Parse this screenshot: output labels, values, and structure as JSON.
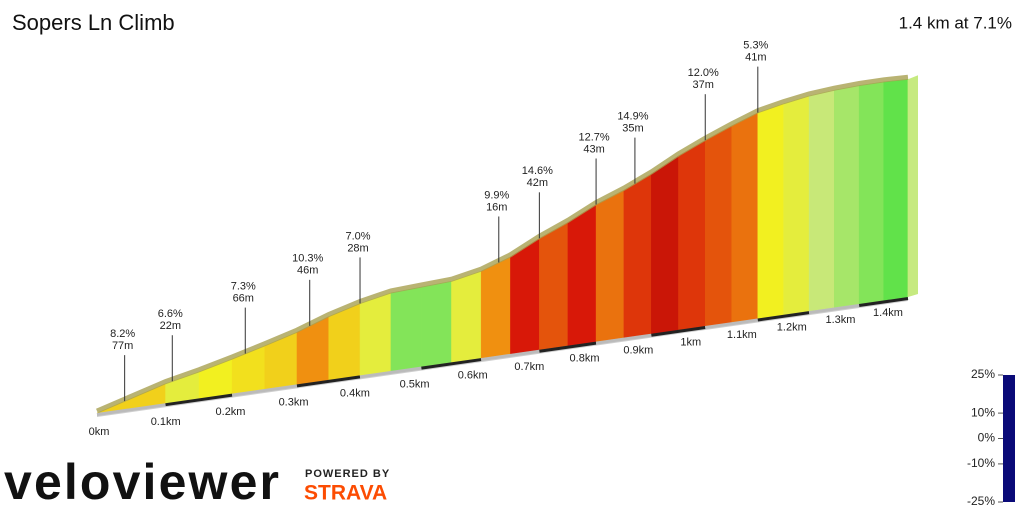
{
  "chart_data": {
    "type": "elevation-profile",
    "title": "Sopers Ln Climb",
    "summary": "1.4 km at 7.1%",
    "bins": [
      0,
      0.05,
      0.1,
      0.15,
      0.2,
      0.25,
      0.3,
      0.35,
      0.4,
      0.45,
      0.5,
      0.55,
      0.6,
      0.65,
      0.7,
      0.75,
      0.8,
      0.85,
      0.9,
      0.95,
      1.0,
      1.05,
      1.1,
      1.15,
      1.2,
      1.25,
      1.3,
      1.35,
      1.4
    ],
    "values": [
      8,
      8,
      6,
      7,
      7.5,
      8,
      10,
      8,
      6,
      2,
      2,
      6,
      10,
      14,
      12,
      14,
      11,
      13,
      15,
      13,
      12,
      11,
      7,
      6,
      4,
      3,
      2,
      1,
      4
    ],
    "xlim": [
      0,
      1.4
    ],
    "xticks": [
      {
        "value": 0,
        "label": "0km"
      },
      {
        "value": 0.1,
        "label": "0.1km"
      },
      {
        "value": 0.2,
        "label": "0.2km"
      },
      {
        "value": 0.3,
        "label": "0.3km"
      },
      {
        "value": 0.4,
        "label": "0.4km"
      },
      {
        "value": 0.5,
        "label": "0.5km"
      },
      {
        "value": 0.6,
        "label": "0.6km"
      },
      {
        "value": 0.7,
        "label": "0.7km"
      },
      {
        "value": 0.8,
        "label": "0.8km"
      },
      {
        "value": 0.9,
        "label": "0.9km"
      },
      {
        "value": 1.0,
        "label": "1km"
      },
      {
        "value": 1.1,
        "label": "1.1km"
      },
      {
        "value": 1.2,
        "label": "1.2km"
      },
      {
        "value": 1.3,
        "label": "1.3km"
      },
      {
        "value": 1.4,
        "label": "1.4km"
      }
    ],
    "annotations": [
      {
        "x": 0.04,
        "grade": {
          "value": 8.2,
          "label": "8.2%"
        },
        "length": {
          "value": 77,
          "label": "77m"
        }
      },
      {
        "x": 0.11,
        "grade": {
          "value": 6.6,
          "label": "6.6%"
        },
        "length": {
          "value": 22,
          "label": "22m"
        }
      },
      {
        "x": 0.22,
        "grade": {
          "value": 7.3,
          "label": "7.3%"
        },
        "length": {
          "value": 66,
          "label": "66m"
        }
      },
      {
        "x": 0.32,
        "grade": {
          "value": 10.3,
          "label": "10.3%"
        },
        "length": {
          "value": 46,
          "label": "46m"
        }
      },
      {
        "x": 0.4,
        "grade": {
          "value": 7.0,
          "label": "7.0%"
        },
        "length": {
          "value": 28,
          "label": "28m"
        }
      },
      {
        "x": 0.63,
        "grade": {
          "value": 9.9,
          "label": "9.9%"
        },
        "length": {
          "value": 16,
          "label": "16m"
        }
      },
      {
        "x": 0.7,
        "grade": {
          "value": 14.6,
          "label": "14.6%"
        },
        "length": {
          "value": 42,
          "label": "42m"
        }
      },
      {
        "x": 0.8,
        "grade": {
          "value": 12.7,
          "label": "12.7%"
        },
        "length": {
          "value": 43,
          "label": "43m"
        }
      },
      {
        "x": 0.87,
        "grade": {
          "value": 14.9,
          "label": "14.9%"
        },
        "length": {
          "value": 35,
          "label": "35m"
        }
      },
      {
        "x": 1.0,
        "grade": {
          "value": 12.0,
          "label": "12.0%"
        },
        "length": {
          "value": 37,
          "label": "37m"
        }
      },
      {
        "x": 1.1,
        "grade": {
          "value": 5.3,
          "label": "5.3%"
        },
        "length": {
          "value": 41,
          "label": "41m"
        }
      }
    ],
    "color_scale": {
      "ylim": [
        -25,
        25
      ],
      "yticks": [
        {
          "value": 25,
          "label": "25%"
        },
        {
          "value": 10,
          "label": "10%"
        },
        {
          "value": 0,
          "label": "0%"
        },
        {
          "value": -10,
          "label": "-10%"
        },
        {
          "value": -25,
          "label": "-25%"
        }
      ],
      "stops": [
        {
          "grade": -25,
          "color": "#0a0a78"
        },
        {
          "grade": -10,
          "color": "#2a5cff"
        },
        {
          "grade": 0,
          "color": "#3ee03a"
        },
        {
          "grade": 4,
          "color": "#c8e878"
        },
        {
          "grade": 7,
          "color": "#f2f020"
        },
        {
          "grade": 10,
          "color": "#f09010"
        },
        {
          "grade": 14,
          "color": "#d81808"
        },
        {
          "grade": 25,
          "color": "#3a0000"
        }
      ]
    }
  },
  "footer": {
    "brand": "veloviewer",
    "powered": "POWERED BY",
    "partner": "STRAVA"
  }
}
